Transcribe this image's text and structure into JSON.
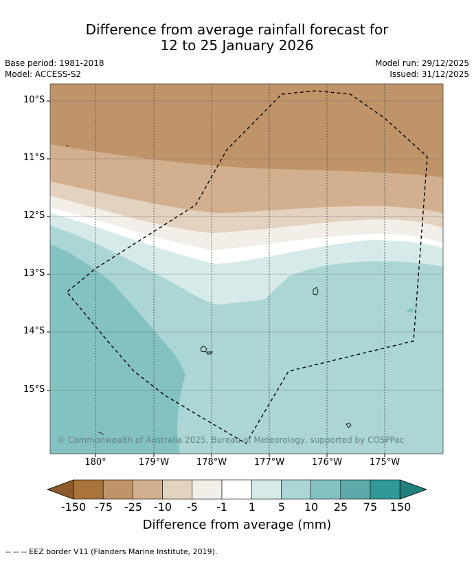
{
  "title": {
    "line1": "Difference from average rainfall forecast for",
    "line2": "12 to 25 January 2026"
  },
  "meta": {
    "base_period": "Base period: 1981-2018",
    "model": "Model: ACCESS-S2",
    "model_run": "Model run: 29/12/2025",
    "issued": "Issued: 31/12/2025"
  },
  "axes": {
    "lat_labels": [
      "10°S",
      "11°S",
      "12°S",
      "13°S",
      "14°S",
      "15°S"
    ],
    "lon_labels": [
      "180°",
      "179°W",
      "178°W",
      "177°W",
      "176°W",
      "175°W"
    ]
  },
  "legend": {
    "ticks": [
      "-150",
      "-75",
      "-25",
      "-10",
      "-5",
      "-1",
      "1",
      "5",
      "10",
      "25",
      "75",
      "150"
    ],
    "colors": [
      "#a8743c",
      "#bf9468",
      "#d2b08f",
      "#e4d2c0",
      "#f3eee8",
      "#ffffff",
      "#d7eaea",
      "#acd6d6",
      "#84c2c2",
      "#5ea9a9",
      "#309a96"
    ],
    "low_end_color": "#8c5a2b",
    "high_end_color": "#1f7f7c",
    "title": "Difference from average (mm)"
  },
  "copyright": "© Commonwealth of Australia 2025, Bureau of Meteorology, supported by COSPPac",
  "footnote": "--  --  -- EEZ border V11 (Flanders Marine Institute, 2019)."
}
